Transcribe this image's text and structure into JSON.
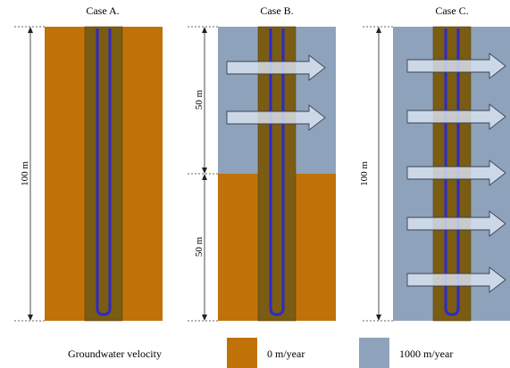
{
  "cases": [
    {
      "title": "Case A.",
      "dimensions": [
        "100 m"
      ],
      "arrow_count": 0
    },
    {
      "title": "Case B.",
      "dimensions": [
        "50 m",
        "50 m"
      ],
      "arrow_count": 2
    },
    {
      "title": "Case C.",
      "dimensions": [
        "100 m"
      ],
      "arrow_count": 5
    }
  ],
  "legend": {
    "title": "Groundwater velocity",
    "items": [
      {
        "label": "0 m/year",
        "color": "#c07209"
      },
      {
        "label": "1000 m/year",
        "color": "#8fa2bb"
      }
    ]
  },
  "colors": {
    "soil": "#c07209",
    "water": "#8fa2bb",
    "borehole": "#7a5c12",
    "pipe": "#2e2ac7",
    "arrow_fill": "#d9e4f2",
    "arrow_stroke": "#3a4150"
  }
}
